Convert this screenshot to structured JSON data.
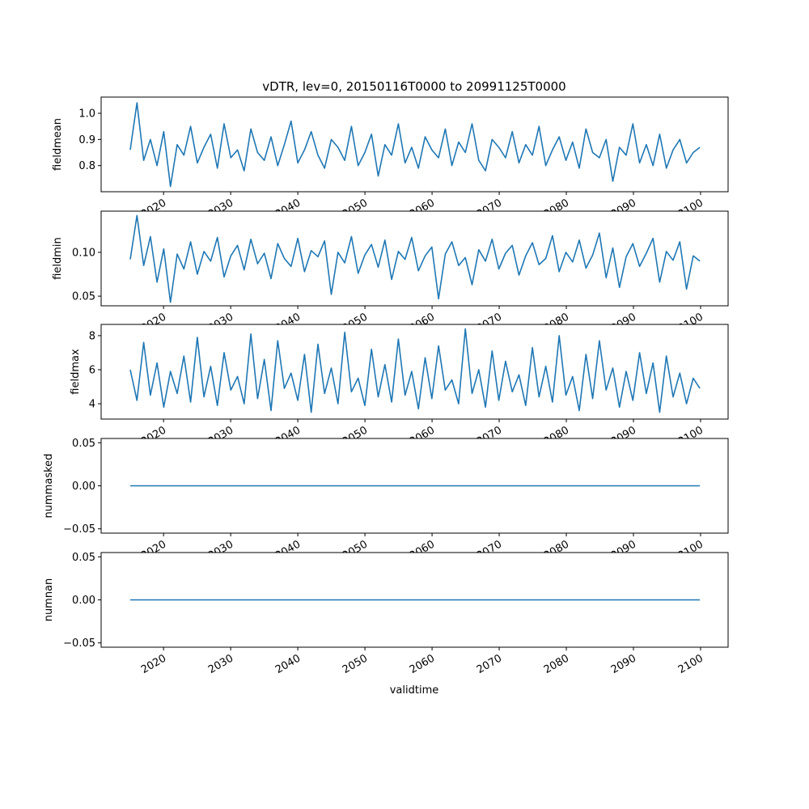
{
  "chart_data": {
    "type": "line",
    "title": "vDTR, lev=0, 20150116T0000 to 20991125T0000",
    "xlabel": "validtime",
    "xlim": [
      2010.7,
      2104.1
    ],
    "x_start": 2015.04,
    "x_end": 2099.9,
    "x_ticks": [
      2020,
      2030,
      2040,
      2050,
      2060,
      2070,
      2080,
      2090,
      2100
    ],
    "x_tick_labels": [
      "2020",
      "2030",
      "2040",
      "2050",
      "2060",
      "2070",
      "2080",
      "2090",
      "2100"
    ],
    "line_color": "#1f77b4",
    "panels": [
      {
        "ylabel": "fieldmean",
        "ylim": [
          0.7,
          1.062
        ],
        "y_ticks": [
          0.8,
          0.9,
          1.0
        ],
        "y_tick_labels": [
          "0.8",
          "0.9",
          "1.0"
        ],
        "values": [
          0.86,
          1.04,
          0.82,
          0.9,
          0.8,
          0.93,
          0.72,
          0.88,
          0.84,
          0.95,
          0.81,
          0.87,
          0.92,
          0.79,
          0.96,
          0.83,
          0.86,
          0.78,
          0.94,
          0.85,
          0.82,
          0.91,
          0.8,
          0.88,
          0.97,
          0.81,
          0.86,
          0.93,
          0.84,
          0.79,
          0.9,
          0.87,
          0.82,
          0.95,
          0.8,
          0.85,
          0.92,
          0.76,
          0.88,
          0.84,
          0.96,
          0.81,
          0.87,
          0.79,
          0.91,
          0.86,
          0.83,
          0.94,
          0.8,
          0.89,
          0.85,
          0.96,
          0.82,
          0.78,
          0.9,
          0.87,
          0.83,
          0.93,
          0.81,
          0.88,
          0.84,
          0.95,
          0.8,
          0.86,
          0.91,
          0.82,
          0.89,
          0.79,
          0.94,
          0.85,
          0.83,
          0.9,
          0.74,
          0.87,
          0.84,
          0.96,
          0.81,
          0.88,
          0.8,
          0.92,
          0.79,
          0.86,
          0.9,
          0.81,
          0.85,
          0.87
        ]
      },
      {
        "ylabel": "fieldmin",
        "ylim": [
          0.039,
          0.147
        ],
        "y_ticks": [
          0.05,
          0.1
        ],
        "y_tick_labels": [
          "0.05",
          "0.10"
        ],
        "values": [
          0.092,
          0.142,
          0.085,
          0.118,
          0.066,
          0.104,
          0.043,
          0.098,
          0.081,
          0.112,
          0.075,
          0.101,
          0.09,
          0.117,
          0.072,
          0.096,
          0.108,
          0.08,
          0.115,
          0.087,
          0.099,
          0.07,
          0.11,
          0.093,
          0.084,
          0.116,
          0.078,
          0.102,
          0.095,
          0.113,
          0.052,
          0.1,
          0.088,
          0.118,
          0.076,
          0.097,
          0.109,
          0.083,
          0.114,
          0.069,
          0.101,
          0.092,
          0.117,
          0.079,
          0.096,
          0.106,
          0.047,
          0.098,
          0.112,
          0.085,
          0.094,
          0.063,
          0.103,
          0.09,
          0.115,
          0.081,
          0.099,
          0.108,
          0.074,
          0.096,
          0.111,
          0.086,
          0.093,
          0.119,
          0.078,
          0.1,
          0.089,
          0.114,
          0.082,
          0.097,
          0.122,
          0.071,
          0.105,
          0.06,
          0.095,
          0.11,
          0.084,
          0.099,
          0.116,
          0.066,
          0.101,
          0.091,
          0.112,
          0.058,
          0.096,
          0.09
        ]
      },
      {
        "ylabel": "fieldmax",
        "ylim": [
          3.1,
          8.66
        ],
        "y_ticks": [
          4,
          6,
          8
        ],
        "y_tick_labels": [
          "4",
          "6",
          "8"
        ],
        "values": [
          6.0,
          4.2,
          7.6,
          4.5,
          6.4,
          3.8,
          5.9,
          4.6,
          6.8,
          4.1,
          7.9,
          4.4,
          6.2,
          3.9,
          7.0,
          4.8,
          5.6,
          4.0,
          8.1,
          4.3,
          6.6,
          3.6,
          7.7,
          4.9,
          5.8,
          4.2,
          6.9,
          3.5,
          7.5,
          4.6,
          6.1,
          4.0,
          8.2,
          4.7,
          5.5,
          3.9,
          7.2,
          4.4,
          6.3,
          4.1,
          7.8,
          4.5,
          5.9,
          3.7,
          6.7,
          4.3,
          7.4,
          4.8,
          5.4,
          4.0,
          8.4,
          4.6,
          6.0,
          3.8,
          7.1,
          4.2,
          6.5,
          4.7,
          5.7,
          3.9,
          7.3,
          4.4,
          6.2,
          4.1,
          8.0,
          4.5,
          5.6,
          3.6,
          6.9,
          4.3,
          7.7,
          4.8,
          6.1,
          3.8,
          5.9,
          4.2,
          7.0,
          4.6,
          6.4,
          3.5,
          6.8,
          4.4,
          5.8,
          4.0,
          5.5,
          4.9
        ]
      },
      {
        "ylabel": "nummasked",
        "ylim": [
          -0.055,
          0.055
        ],
        "y_ticks": [
          -0.05,
          0.0,
          0.05
        ],
        "y_tick_labels": [
          "−0.05",
          "0.00",
          "0.05"
        ],
        "values": [
          0,
          0
        ]
      },
      {
        "ylabel": "numnan",
        "ylim": [
          -0.055,
          0.055
        ],
        "y_ticks": [
          -0.05,
          0.0,
          0.05
        ],
        "y_tick_labels": [
          "−0.05",
          "0.00",
          "0.05"
        ],
        "values": [
          0,
          0
        ]
      }
    ]
  }
}
